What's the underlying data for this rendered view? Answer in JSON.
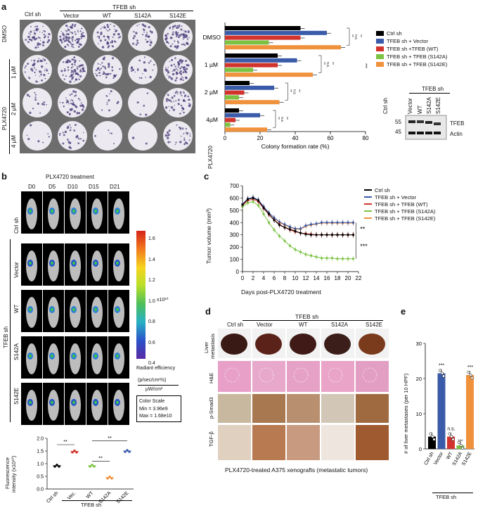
{
  "panel_letters": {
    "a": "a",
    "b": "b",
    "c": "c",
    "d": "d",
    "e": "e"
  },
  "a": {
    "tfeb_sh": "TFEB sh",
    "columns": [
      "Ctrl sh",
      "Vector",
      "WT",
      "S142A",
      "S142E"
    ],
    "rows": [
      "DMSO",
      "1 µM",
      "2 µM",
      "4 µM"
    ],
    "drug": "PLX4720",
    "bar_groups": [
      "DMSO",
      "1 µM",
      "2 µM",
      "4µM"
    ],
    "bar_drug": "PLX4720",
    "xlabel": "Colony formation rate (%)",
    "xticks": [
      "0",
      "20",
      "40",
      "60",
      "80"
    ],
    "legend": [
      "Ctrl sh",
      "TFEB sh + Vector",
      "TFEB sh +TFEB (WT)",
      "TFEB sh + TFEB (S142A)",
      "TFEB sh + TFEB (S142E)"
    ],
    "sig_labels": [
      "**",
      "n.s.",
      "**",
      "***"
    ],
    "blot": {
      "tfeb_sh": "TFEB sh",
      "lanes": [
        "Ctrl sh",
        "Vector",
        "WT",
        "S142A",
        "S142E"
      ],
      "markers": [
        "55",
        "45"
      ],
      "bands": [
        "TFEB",
        "Actin"
      ]
    }
  },
  "b": {
    "treatment": "PLX4720 treatment",
    "days": [
      "D0",
      "D5",
      "D10",
      "D15",
      "D21"
    ],
    "rows": [
      "Ctrl sh",
      "Vector",
      "WT",
      "S142A",
      "S142E"
    ],
    "tfeb_sh": "TFEB sh",
    "scale_ticks": [
      "1.6",
      "1.4",
      "1.2",
      "1.0",
      "0.8",
      "0.6",
      "0.4"
    ],
    "scale_exp": "x10¹⁰",
    "radiant": "Radiant efficiency",
    "radiant_unit1": "(p/sec/cm²/s)",
    "radiant_unit2": "µW/cm²",
    "color_scale": "Color Scale",
    "min": "Min = 3.96e9",
    "max": "Max = 1.68e10",
    "ylabel1": "Fluorescence",
    "ylabel2": "intensity (x10¹⁰)",
    "yticks": [
      "2.0",
      "1.5",
      "1.0",
      "0.5",
      "0.0"
    ],
    "xcats": [
      "Ctrl sh",
      "Vec.",
      "WT",
      "S142A",
      "S142E"
    ],
    "sig": [
      "**",
      "**",
      "**"
    ]
  },
  "c": {
    "ylabel": "Tumor volume (mm³)",
    "xlabel": "Days post-PLX4720 treatment",
    "legend": [
      "Ctrl sh",
      "TFEB sh + Vector",
      "TFEB sh + TFEB (WT)",
      "TFEB sh + TFEB (S142A)",
      "TFEB sh + TFEB (S142E)"
    ],
    "sig": [
      "**",
      "***"
    ]
  },
  "d": {
    "tfeb_sh": "TFEB sh",
    "columns": [
      "Ctrl sh",
      "Vector",
      "WT",
      "S142A",
      "S142E"
    ],
    "rows": [
      "Liver\nmetastasis",
      "H&E",
      "p-Smad3",
      "TGF-β"
    ],
    "row1a": "Liver",
    "row1b": "metastasis",
    "row2": "H&E",
    "row3": "p-Smad3",
    "row4": "TGF-β",
    "caption": "PLX4720-treated A375 xenografts (metastatic tumors)"
  },
  "e": {
    "ylabel": "# of liver metastases (per 10 HPF)",
    "yticks": [
      "30",
      "20",
      "10",
      "0"
    ],
    "xcats": [
      "Ctrl sh",
      "Vector",
      "WT",
      "S142A",
      "S142E"
    ],
    "tfeb_sh": "TFEB sh",
    "sig": [
      "***",
      "n.s.",
      "***",
      "***"
    ]
  },
  "colors": {
    "black": "#000000",
    "blue": "#3a5ba9",
    "red": "#d2332c",
    "green": "#7cc242",
    "orange": "#f0913c"
  },
  "chart_data": [
    {
      "type": "bar",
      "panel": "a",
      "orientation": "horizontal",
      "categories": [
        "DMSO",
        "1 µM",
        "2 µM",
        "4µM"
      ],
      "series": [
        {
          "name": "Ctrl sh",
          "values": [
            43,
            30,
            14,
            8
          ]
        },
        {
          "name": "TFEB sh + Vector",
          "values": [
            58,
            41,
            28,
            20
          ]
        },
        {
          "name": "TFEB sh +TFEB (WT)",
          "values": [
            43,
            30,
            11,
            6
          ]
        },
        {
          "name": "TFEB sh + TFEB (S142A)",
          "values": [
            25,
            16,
            8,
            3
          ]
        },
        {
          "name": "TFEB sh + TFEB (S142E)",
          "values": [
            66,
            50,
            31,
            24
          ]
        }
      ],
      "xlabel": "Colony formation rate (%)",
      "xlim": [
        0,
        80
      ]
    },
    {
      "type": "line",
      "panel": "c",
      "x": [
        0,
        1,
        2,
        3,
        4,
        5,
        6,
        7,
        8,
        9,
        10,
        11,
        12,
        13,
        14,
        15,
        16,
        17,
        18,
        19,
        20,
        21
      ],
      "series": [
        {
          "name": "Ctrl sh",
          "values": [
            545,
            590,
            600,
            580,
            520,
            470,
            420,
            380,
            360,
            345,
            330,
            315,
            305,
            300,
            300,
            300,
            300,
            300,
            300,
            300,
            300,
            300
          ]
        },
        {
          "name": "TFEB sh + Vector",
          "values": [
            550,
            595,
            605,
            585,
            530,
            480,
            440,
            405,
            385,
            365,
            350,
            350,
            375,
            385,
            390,
            400,
            400,
            400,
            400,
            400,
            400,
            400
          ]
        },
        {
          "name": "TFEB sh + TFEB (WT)",
          "values": [
            540,
            580,
            590,
            570,
            515,
            465,
            420,
            385,
            360,
            340,
            325,
            315,
            310,
            305,
            300,
            300,
            300,
            300,
            300,
            300,
            300,
            300
          ]
        },
        {
          "name": "TFEB sh + TFEB (S142A)",
          "values": [
            530,
            560,
            570,
            540,
            470,
            400,
            340,
            290,
            250,
            210,
            180,
            160,
            140,
            130,
            120,
            110,
            110,
            110,
            105,
            105,
            105,
            105
          ]
        },
        {
          "name": "TFEB sh + TFEB (S142E)",
          "values": [
            548,
            592,
            602,
            582,
            526,
            478,
            436,
            400,
            380,
            362,
            346,
            346,
            370,
            380,
            388,
            396,
            396,
            396,
            396,
            396,
            396,
            396
          ]
        }
      ],
      "xlabel": "Days post-PLX4720 treatment",
      "ylabel": "Tumor volume (mm³)",
      "xlim": [
        0,
        22
      ],
      "ylim": [
        0,
        700
      ],
      "xticks": [
        0,
        2,
        4,
        6,
        8,
        10,
        12,
        14,
        16,
        18,
        20,
        22
      ],
      "yticks": [
        0,
        100,
        200,
        300,
        400,
        500,
        600,
        700
      ]
    },
    {
      "type": "scatter",
      "panel": "b",
      "categories": [
        "Ctrl sh",
        "Vec.",
        "WT",
        "S142A",
        "S142E"
      ],
      "values": [
        0.92,
        1.48,
        0.92,
        0.45,
        1.5
      ],
      "ylabel": "Fluorescence intensity (x10¹⁰)",
      "ylim": [
        0,
        2.0
      ]
    },
    {
      "type": "bar",
      "panel": "e",
      "categories": [
        "Ctrl sh",
        "Vector",
        "WT",
        "S142A",
        "S142E"
      ],
      "values": [
        3.5,
        21.5,
        3.5,
        1,
        21
      ],
      "ylabel": "# of liver metastases (per 10 HPF)",
      "ylim": [
        0,
        30
      ]
    }
  ]
}
